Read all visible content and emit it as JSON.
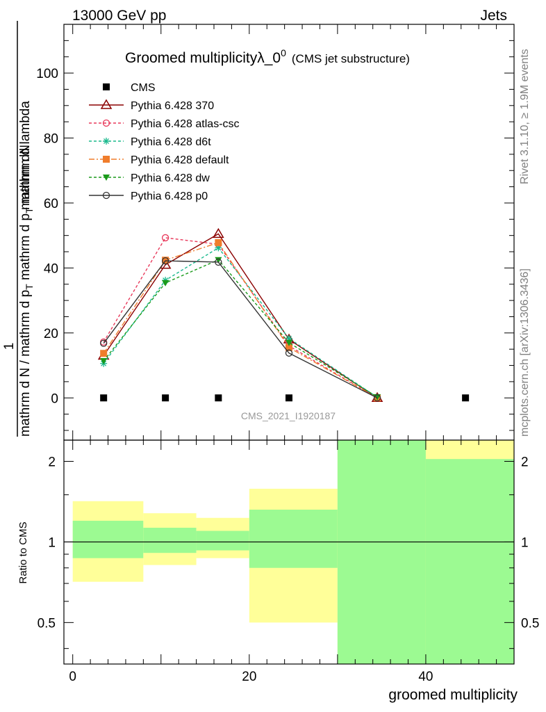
{
  "header": {
    "left": "13000 GeV pp",
    "right": "Jets"
  },
  "side_labels": {
    "rivet": "Rivet 3.1.10, ≥ 1.9M events",
    "mcplots": "mcplots.cern.ch [arXiv:1306.3436]"
  },
  "chart_data": [
    {
      "type": "line",
      "title": "Groomed multiplicityλ_0",
      "title_sup": "0",
      "subtitle": "(CMS jet substructure)",
      "watermark": "CMS_2021_I1920187",
      "ylabel_numerator": "1",
      "ylabel_numerator_sub": "mathrm dN",
      "ylabel_denominator": "mathrm d N / mathrm d p",
      "ylabel_denominator_sub": "T",
      "ylabel_denominator_tail": " mathrm d p",
      "ylabel_denominator_sub2": "T",
      "ylabel_denominator_tail2": " mathrm d lambda",
      "xlim": [
        -1,
        50
      ],
      "ylim": [
        -13,
        115
      ],
      "yticks": [
        0,
        20,
        40,
        60,
        80,
        100
      ],
      "legend_position": "top-left",
      "series": [
        {
          "name": "CMS",
          "color": "#000000",
          "marker": "square",
          "dash": "none",
          "x": [
            3.5,
            10.5,
            16.5,
            24.5,
            44.5
          ],
          "y": [
            0,
            0,
            0,
            0,
            0
          ]
        },
        {
          "name": "Pythia 6.428 370",
          "color": "#8b0000",
          "marker": "triangle-open",
          "dash": "solid",
          "x": [
            3.5,
            10.5,
            16.5,
            24.5,
            34.5
          ],
          "y": [
            13,
            41,
            50.5,
            18,
            0
          ]
        },
        {
          "name": "Pythia 6.428 atlas-csc",
          "color": "#e8385a",
          "marker": "circle-open",
          "dash": "4,3",
          "x": [
            3.5,
            10.5,
            16.5,
            24.5,
            34.5
          ],
          "y": [
            17.2,
            49.3,
            47.3,
            16,
            0
          ]
        },
        {
          "name": "Pythia 6.428 d6t",
          "color": "#18b88c",
          "marker": "star",
          "dash": "4,3",
          "x": [
            3.5,
            10.5,
            16.5,
            24.5,
            34.5
          ],
          "y": [
            10.6,
            36.2,
            46.2,
            18.3,
            0.2
          ]
        },
        {
          "name": "Pythia 6.428 default",
          "color": "#f07d2c",
          "marker": "square",
          "dash": "8,3,2,3",
          "x": [
            3.5,
            10.5,
            16.5,
            24.5,
            34.5
          ],
          "y": [
            13.7,
            42.4,
            47.8,
            15.5,
            0
          ]
        },
        {
          "name": "Pythia 6.428 dw",
          "color": "#1a9a1a",
          "marker": "triangle-down",
          "dash": "4,3",
          "x": [
            3.5,
            10.5,
            16.5,
            24.5,
            34.5
          ],
          "y": [
            11.4,
            35.4,
            42.5,
            17,
            0.3
          ]
        },
        {
          "name": "Pythia 6.428 p0",
          "color": "#333333",
          "marker": "circle-open",
          "dash": "solid",
          "x": [
            3.5,
            10.5,
            16.5,
            24.5,
            34.5
          ],
          "y": [
            16.8,
            42.2,
            41.8,
            13.8,
            0
          ]
        }
      ]
    },
    {
      "type": "area",
      "xlabel": "groomed multiplicity",
      "ylabel": "Ratio to CMS",
      "xlim": [
        -1,
        50
      ],
      "ylim": [
        0.35,
        2.4
      ],
      "scale": "log",
      "yticks": [
        0.5,
        1,
        2
      ],
      "xticks": [
        0,
        20,
        40
      ],
      "reference_line": 1,
      "bands": [
        {
          "x": [
            0,
            8
          ],
          "stat": [
            0.87,
            1.2
          ],
          "total": [
            0.71,
            1.42
          ],
          "name": "bin1"
        },
        {
          "x": [
            8,
            14
          ],
          "stat": [
            0.91,
            1.13
          ],
          "total": [
            0.82,
            1.28
          ],
          "name": "bin2"
        },
        {
          "x": [
            14,
            20
          ],
          "stat": [
            0.93,
            1.1
          ],
          "total": [
            0.87,
            1.23
          ],
          "name": "bin3"
        },
        {
          "x": [
            20,
            30
          ],
          "stat": [
            0.8,
            1.32
          ],
          "total": [
            0.5,
            1.58
          ],
          "name": "bin4"
        },
        {
          "x": [
            30,
            40
          ],
          "stat": [
            0.35,
            2.4
          ],
          "total": [
            0.35,
            2.4
          ],
          "name": "bin5"
        },
        {
          "x": [
            40,
            50
          ],
          "stat": [
            0.35,
            2.04
          ],
          "total": [
            0.35,
            2.4
          ],
          "name": "bin6"
        }
      ],
      "stat_color": "#9cfa92",
      "total_color": "#ffff99"
    }
  ]
}
